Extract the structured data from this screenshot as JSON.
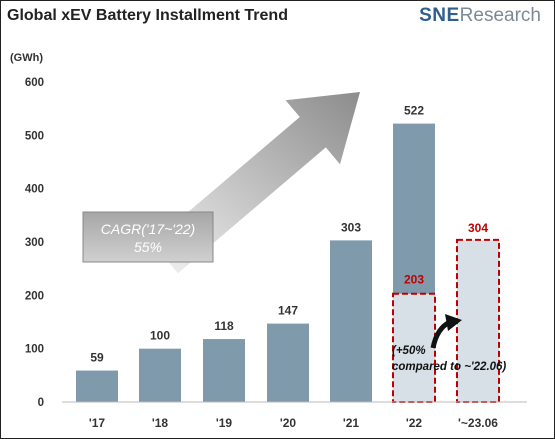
{
  "header": {
    "title": "Global xEV Battery Installment Trend",
    "logo_primary": "SNE",
    "logo_secondary": "Research"
  },
  "chart_data": {
    "type": "bar",
    "title": "Global xEV Battery Installment Trend",
    "ylabel": "(GWh)",
    "ylim": [
      0,
      600
    ],
    "yticks": [
      0,
      100,
      200,
      300,
      400,
      500,
      600
    ],
    "categories": [
      "'17",
      "'18",
      "'19",
      "'20",
      "'21",
      "'22",
      "'~23.06"
    ],
    "values": [
      59,
      100,
      118,
      147,
      303,
      522,
      304
    ],
    "value_labels": [
      "59",
      "100",
      "118",
      "147",
      "303",
      "522",
      "304"
    ],
    "highlight_segment": {
      "category": "'22",
      "value": 203,
      "label": "203"
    },
    "annotations": {
      "cagr_line1": "CAGR('17~'22)",
      "cagr_line2": "55%",
      "growth_line1": "(+50%",
      "growth_line2": "compared to ~'22.06)"
    },
    "colors": {
      "bar": "#7f9aab",
      "highlight_fill": "#d6e0e6",
      "highlight_border": "#c00000",
      "highlight_text": "#c00000",
      "arrow": "#999999"
    }
  }
}
